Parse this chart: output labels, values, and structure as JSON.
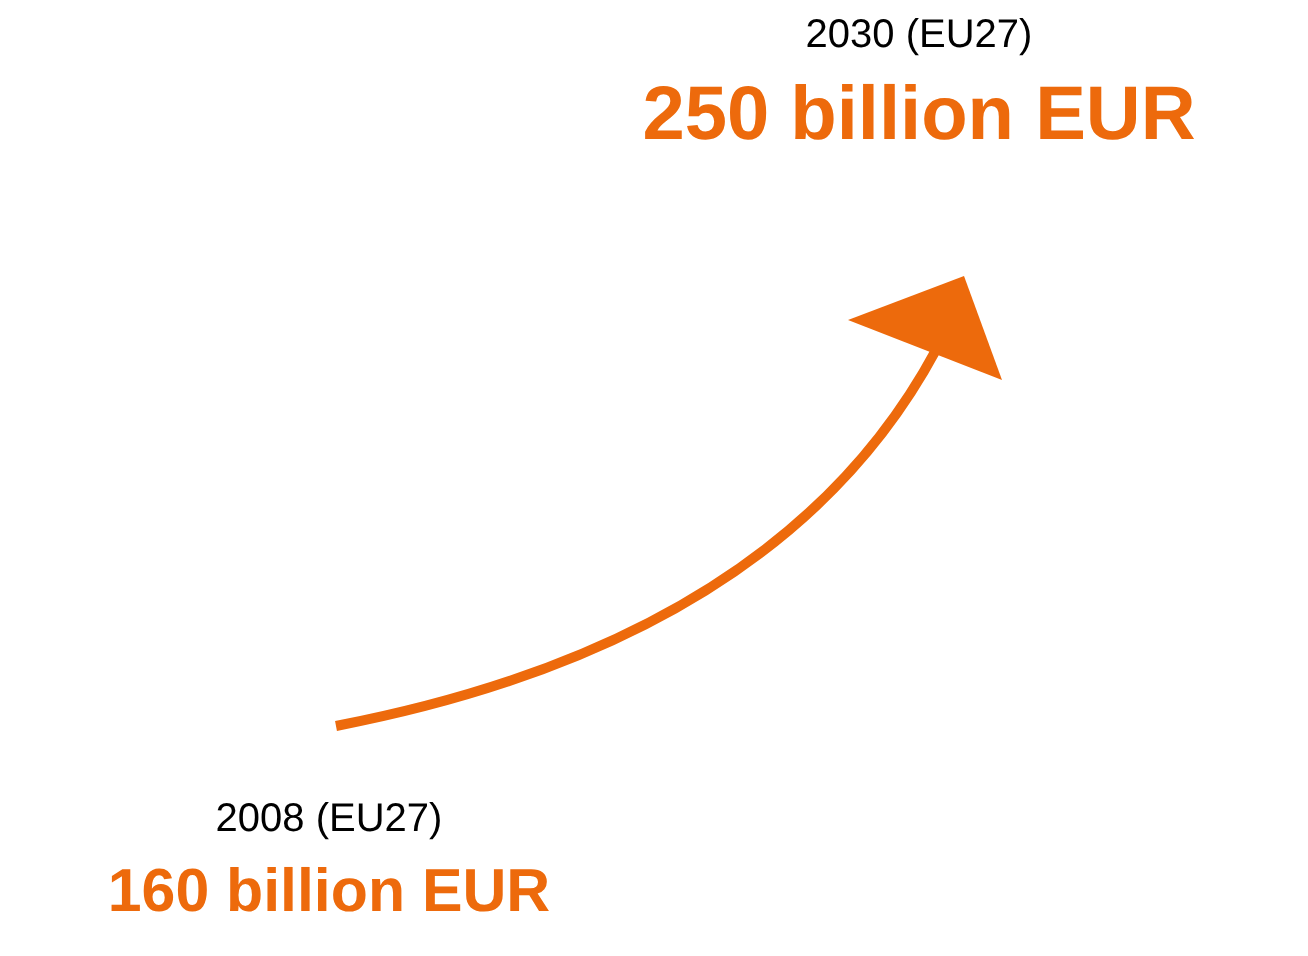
{
  "chart_data": {
    "type": "other",
    "categories": [
      "2008 (EU27)",
      "2030 (EU27)"
    ],
    "values": [
      160,
      250
    ],
    "value_labels": [
      "160 billion EUR",
      "250 billion EUR"
    ],
    "color": "#ed6a0c"
  }
}
